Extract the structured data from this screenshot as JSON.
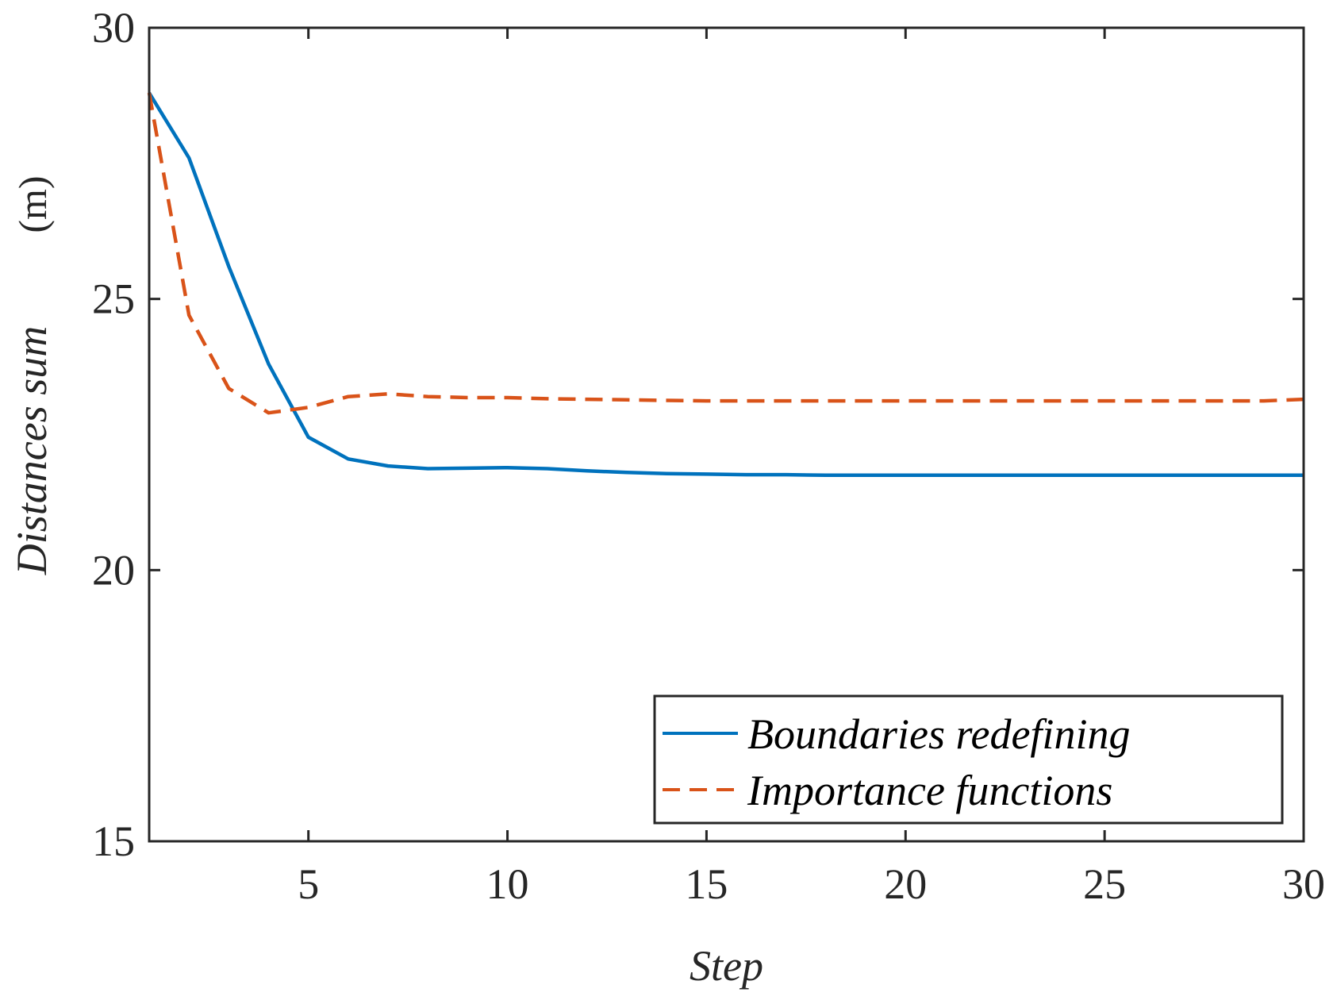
{
  "chart_data": {
    "type": "line",
    "title": "",
    "xlabel": "Step",
    "ylabel": "Distances  sum",
    "ylabel_unit": "(m)",
    "xlim": [
      1,
      30
    ],
    "ylim": [
      15,
      30
    ],
    "xticks": [
      5,
      10,
      15,
      20,
      25,
      30
    ],
    "yticks": [
      15,
      20,
      25,
      30
    ],
    "grid": false,
    "legend_position": "bottom-right",
    "x": [
      1,
      2,
      3,
      4,
      5,
      6,
      7,
      8,
      9,
      10,
      11,
      12,
      13,
      14,
      15,
      16,
      17,
      18,
      19,
      20,
      21,
      22,
      23,
      24,
      25,
      26,
      27,
      28,
      29,
      30
    ],
    "series": [
      {
        "name": "Boundaries redefining",
        "color": "#0072BD",
        "style": "solid",
        "values": [
          28.8,
          27.6,
          25.6,
          23.8,
          22.45,
          22.05,
          21.92,
          21.87,
          21.88,
          21.89,
          21.87,
          21.83,
          21.8,
          21.78,
          21.77,
          21.76,
          21.76,
          21.75,
          21.75,
          21.75,
          21.75,
          21.75,
          21.75,
          21.75,
          21.75,
          21.75,
          21.75,
          21.75,
          21.75,
          21.75
        ]
      },
      {
        "name": "Importance functions",
        "color": "#D95319",
        "style": "dashed",
        "values": [
          28.8,
          24.7,
          23.35,
          22.9,
          23.0,
          23.2,
          23.25,
          23.2,
          23.18,
          23.18,
          23.16,
          23.15,
          23.14,
          23.13,
          23.12,
          23.12,
          23.12,
          23.12,
          23.12,
          23.12,
          23.12,
          23.12,
          23.12,
          23.12,
          23.12,
          23.12,
          23.12,
          23.12,
          23.12,
          23.15
        ]
      }
    ]
  }
}
